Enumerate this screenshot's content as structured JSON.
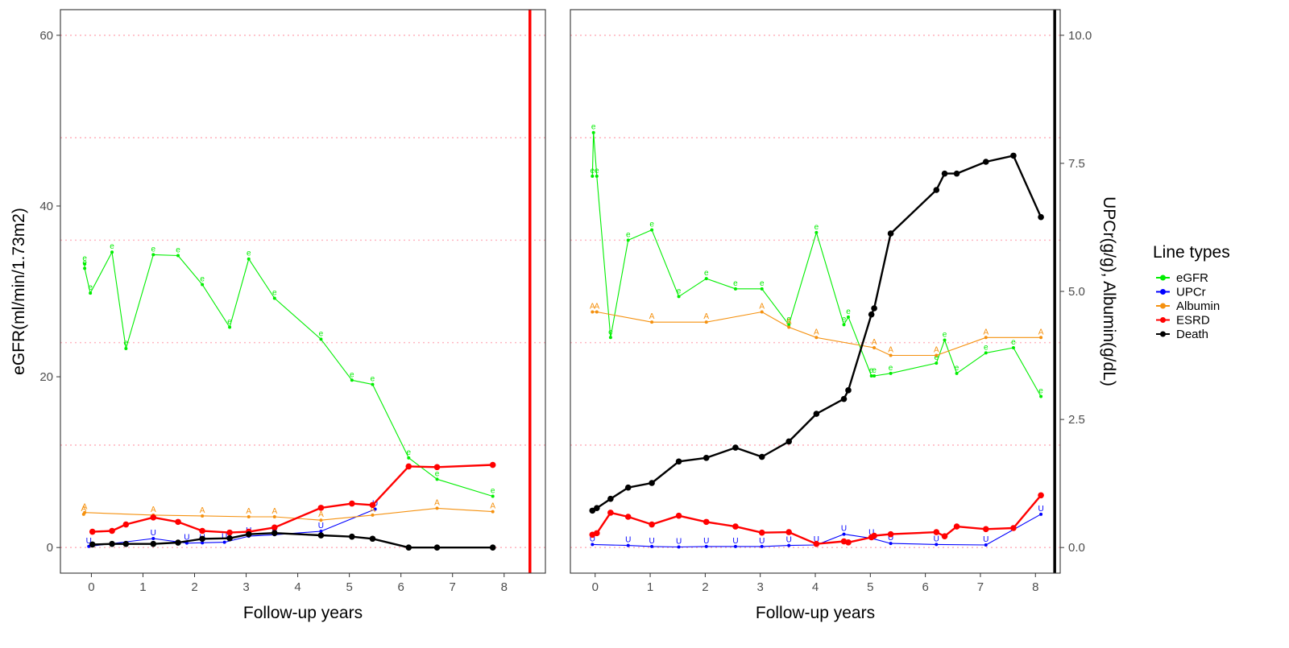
{
  "colors": {
    "eGFR": "#00ee00",
    "UPCr": "#0000ff",
    "Albumin": "#f5910f",
    "ESRD": "#ff0000",
    "Death": "#000000",
    "refline": "#ffb6c1",
    "left_vline": "#ff0000",
    "right_vline": "#000000"
  },
  "chart_data": [
    {
      "type": "line",
      "panel": "left",
      "xlabel": "Follow-up years",
      "ylabel": "eGFR(ml/min/1.73m2)",
      "xlim": [
        -0.6,
        8.8
      ],
      "ylim": [
        -3,
        63
      ],
      "x_ticks": [
        0,
        1,
        2,
        3,
        4,
        5,
        6,
        7,
        8
      ],
      "y_ticks": [
        0,
        20,
        40,
        60
      ],
      "reference_lines_y": [
        0,
        12,
        24,
        36,
        48,
        60
      ],
      "event_line_x": 8.5,
      "event_line_color": "ESRD",
      "series": [
        {
          "name": "eGFR",
          "marker": "e",
          "style": "thin",
          "x": [
            -0.13,
            -0.13,
            -0.02,
            0.4,
            0.67,
            1.2,
            1.68,
            2.15,
            2.68,
            3.05,
            3.55,
            4.45,
            5.05,
            5.45,
            6.15,
            6.7,
            7.78
          ],
          "y": [
            33.2,
            32.7,
            29.8,
            34.6,
            23.3,
            34.3,
            34.2,
            30.8,
            25.8,
            33.8,
            29.2,
            24.4,
            19.6,
            19.1,
            10.5,
            8.0,
            6.0
          ]
        },
        {
          "name": "UPCr",
          "marker": "U",
          "style": "thin",
          "x": [
            -0.05,
            1.2,
            1.85,
            2.15,
            2.58,
            3.05,
            3.55,
            4.45,
            5.5
          ],
          "y": [
            0.13,
            1.05,
            0.52,
            0.55,
            0.62,
            1.33,
            1.5,
            1.9,
            4.5
          ]
        },
        {
          "name": "Albumin",
          "marker": "A",
          "style": "thin",
          "x": [
            -0.15,
            -0.13,
            1.2,
            2.15,
            3.05,
            3.55,
            4.45,
            5.45,
            6.7,
            7.78
          ],
          "y": [
            3.9,
            4.1,
            3.8,
            3.7,
            3.6,
            3.6,
            3.2,
            3.8,
            4.6,
            4.2
          ]
        },
        {
          "name": "ESRD",
          "marker": "point",
          "style": "thick",
          "x": [
            0.02,
            0.4,
            0.67,
            1.2,
            1.68,
            2.15,
            2.68,
            3.05,
            3.55,
            4.45,
            5.05,
            5.45,
            6.15,
            6.7,
            7.78
          ],
          "y": [
            1.85,
            1.95,
            2.7,
            3.52,
            3.0,
            1.95,
            1.75,
            1.85,
            2.35,
            4.65,
            5.15,
            4.98,
            9.5,
            9.42,
            9.68
          ]
        },
        {
          "name": "Death",
          "marker": "point",
          "style": "thick",
          "x": [
            0.02,
            0.4,
            0.67,
            1.2,
            1.68,
            2.15,
            2.68,
            3.05,
            3.55,
            4.45,
            5.05,
            5.45,
            6.15,
            6.7,
            7.78
          ],
          "y": [
            0.35,
            0.42,
            0.42,
            0.42,
            0.58,
            1.02,
            1.08,
            1.55,
            1.7,
            1.43,
            1.27,
            1.03,
            0.0,
            0.0,
            0.0
          ]
        }
      ]
    },
    {
      "type": "line",
      "panel": "right",
      "xlabel": "Follow-up years",
      "ylabel": "UPCr(g/g), Albumin(g/dL)",
      "xlim": [
        -0.45,
        8.45
      ],
      "ylim": [
        -0.5,
        10.5
      ],
      "x_ticks": [
        0,
        1,
        2,
        3,
        4,
        5,
        6,
        7,
        8
      ],
      "y_ticks": [
        0.0,
        2.5,
        5.0,
        7.5,
        10.0
      ],
      "y_tick_labels": [
        "0.0",
        "2.5",
        "5.0",
        "7.5",
        "10.0"
      ],
      "reference_lines_y": [
        0,
        2,
        4,
        6,
        8,
        10
      ],
      "event_line_x": 8.35,
      "event_line_color": "Death",
      "series": [
        {
          "name": "eGFR",
          "marker": "e",
          "style": "thin",
          "x": [
            -0.05,
            -0.03,
            0.03,
            0.28,
            0.6,
            1.03,
            1.52,
            2.02,
            2.55,
            3.03,
            3.52,
            4.02,
            4.52,
            4.6,
            5.02,
            5.07,
            5.37,
            6.2,
            6.35,
            6.57,
            7.1,
            7.6,
            8.1
          ],
          "y": [
            7.25,
            8.1,
            7.25,
            4.1,
            6.0,
            6.2,
            4.9,
            5.25,
            5.05,
            5.05,
            4.35,
            6.15,
            4.35,
            4.5,
            3.35,
            3.35,
            3.4,
            3.6,
            4.05,
            3.4,
            3.8,
            3.9,
            2.95
          ]
        },
        {
          "name": "UPCr",
          "marker": "U",
          "style": "thin",
          "x": [
            -0.05,
            0.6,
            1.03,
            1.52,
            2.02,
            2.55,
            3.03,
            3.52,
            4.02,
            4.52,
            5.02,
            5.37,
            6.2,
            7.1,
            8.1
          ],
          "y": [
            0.06,
            0.04,
            0.02,
            0.01,
            0.02,
            0.02,
            0.02,
            0.04,
            0.05,
            0.26,
            0.18,
            0.08,
            0.06,
            0.05,
            0.65
          ]
        },
        {
          "name": "Albumin",
          "marker": "A",
          "style": "thin",
          "x": [
            -0.05,
            0.03,
            1.03,
            2.02,
            3.03,
            3.52,
            4.02,
            5.07,
            5.37,
            6.2,
            7.1,
            8.1
          ],
          "y": [
            4.6,
            4.6,
            4.4,
            4.4,
            4.6,
            4.3,
            4.1,
            3.9,
            3.75,
            3.75,
            4.1,
            4.1
          ]
        },
        {
          "name": "ESRD",
          "marker": "point",
          "style": "thick",
          "x": [
            -0.05,
            0.03,
            0.28,
            0.6,
            1.03,
            1.52,
            2.02,
            2.55,
            3.03,
            3.52,
            4.02,
            4.52,
            4.6,
            5.02,
            5.07,
            5.37,
            6.2,
            6.35,
            6.57,
            7.1,
            7.6,
            8.1
          ],
          "y": [
            0.25,
            0.28,
            0.68,
            0.6,
            0.45,
            0.62,
            0.5,
            0.41,
            0.29,
            0.3,
            0.07,
            0.12,
            0.1,
            0.2,
            0.23,
            0.26,
            0.3,
            0.22,
            0.41,
            0.36,
            0.38,
            1.02
          ]
        },
        {
          "name": "Death",
          "marker": "point",
          "style": "thick",
          "x": [
            -0.05,
            0.03,
            0.28,
            0.6,
            1.03,
            1.52,
            2.02,
            2.55,
            3.03,
            3.52,
            4.02,
            4.52,
            4.6,
            5.02,
            5.07,
            5.37,
            6.2,
            6.35,
            6.57,
            7.1,
            7.6,
            8.1
          ],
          "y": [
            0.72,
            0.77,
            0.95,
            1.17,
            1.26,
            1.68,
            1.75,
            1.95,
            1.77,
            2.07,
            2.61,
            2.9,
            3.07,
            4.55,
            4.67,
            6.13,
            6.98,
            7.3,
            7.3,
            7.53,
            7.65,
            6.45
          ]
        }
      ]
    }
  ],
  "legend": {
    "title": "Line types",
    "position": "right",
    "items": [
      "eGFR",
      "UPCr",
      "Albumin",
      "ESRD",
      "Death"
    ]
  }
}
